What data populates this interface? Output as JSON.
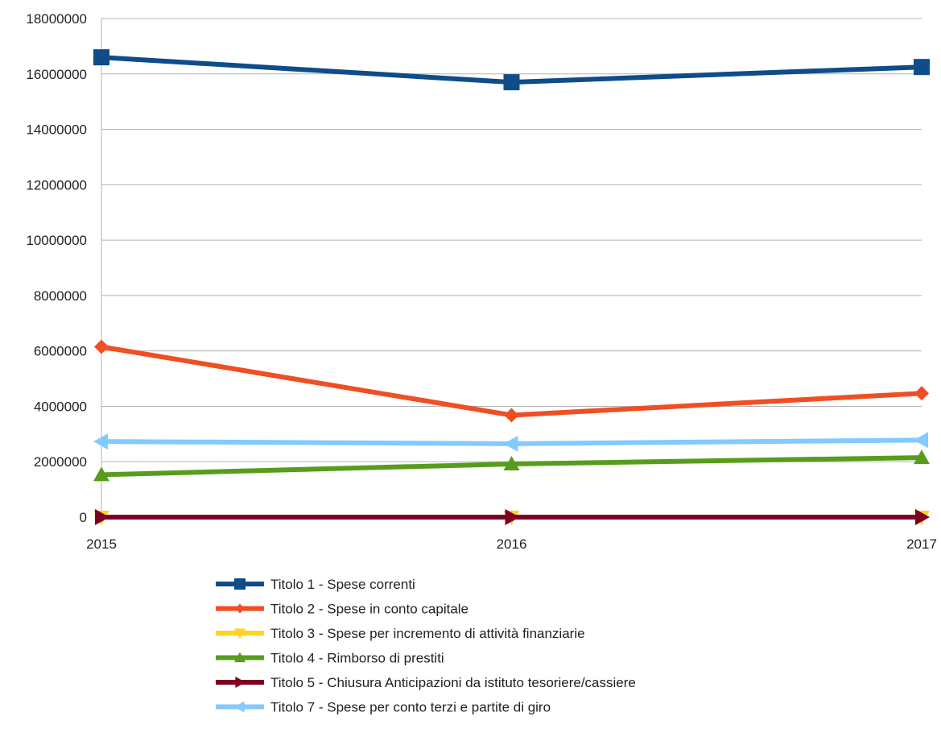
{
  "chart_data": {
    "type": "line",
    "title": "",
    "xlabel": "",
    "ylabel": "",
    "categories": [
      "2015",
      "2016",
      "2017"
    ],
    "ylim": [
      0,
      18000000
    ],
    "yticks": [
      0,
      2000000,
      4000000,
      6000000,
      8000000,
      10000000,
      12000000,
      14000000,
      16000000,
      18000000
    ],
    "ytick_labels": [
      "0",
      "2000000",
      "4000000",
      "6000000",
      "8000000",
      "10000000",
      "12000000",
      "14000000",
      "16000000",
      "18000000"
    ],
    "grid": true,
    "legend_position": "bottom",
    "series": [
      {
        "name": "Titolo 1 - Spese correnti",
        "values": [
          16600000,
          15700000,
          16250000
        ],
        "color": "#0f4c8a",
        "marker": "square"
      },
      {
        "name": "Titolo 2 - Spese in conto capitale",
        "values": [
          6150000,
          3680000,
          4470000
        ],
        "color": "#f04e23",
        "marker": "diamond"
      },
      {
        "name": "Titolo 3 - Spese per incremento di attività finanziarie",
        "values": [
          0,
          0,
          0
        ],
        "color": "#ffd320",
        "marker": "triangle-down"
      },
      {
        "name": "Titolo 4 - Rimborso di prestiti",
        "values": [
          1530000,
          1920000,
          2150000
        ],
        "color": "#579d1c",
        "marker": "triangle-up"
      },
      {
        "name": "Titolo 5 - Chiusura Anticipazioni da istituto tesoriere/cassiere",
        "values": [
          0,
          0,
          0
        ],
        "color": "#7e0021",
        "marker": "triangle-right"
      },
      {
        "name": "Titolo 7 - Spese per conto terzi e partite di giro",
        "values": [
          2730000,
          2650000,
          2780000
        ],
        "color": "#83caff",
        "marker": "triangle-left"
      }
    ]
  }
}
